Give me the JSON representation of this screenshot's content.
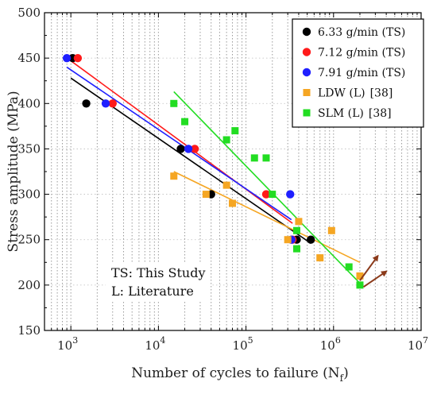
{
  "chart_data": {
    "type": "scatter",
    "title": "",
    "xlabel": "Number of cycles to failure (N",
    "xlabel_sub": "f",
    "xlabel_close": ")",
    "ylabel": "Stress amplitude (MPa)",
    "xscale": "log",
    "xlim": [
      500,
      10000000
    ],
    "ylim": [
      150,
      500
    ],
    "x_ticks": [
      {
        "value": 1000,
        "base": "10",
        "exp": "3"
      },
      {
        "value": 10000,
        "base": "10",
        "exp": "4"
      },
      {
        "value": 100000,
        "base": "10",
        "exp": "5"
      },
      {
        "value": 1000000,
        "base": "10",
        "exp": "6"
      },
      {
        "value": 10000000,
        "base": "10",
        "exp": "7"
      }
    ],
    "y_ticks": [
      "150",
      "200",
      "250",
      "300",
      "350",
      "400",
      "450",
      "500"
    ],
    "grid": true,
    "legend_position": "top-right",
    "series": [
      {
        "name": "6.33 g/min (TS)",
        "color": "#000000",
        "marker": "circle",
        "points": [
          [
            1050,
            450
          ],
          [
            1500,
            400
          ],
          [
            18000,
            350
          ],
          [
            40000,
            300
          ],
          [
            380000,
            250
          ],
          [
            550000,
            250
          ]
        ],
        "trend": [
          [
            1000,
            428
          ],
          [
            550000,
            246
          ]
        ]
      },
      {
        "name": "7.12 g/min (TS)",
        "color": "#ff1a1a",
        "marker": "circle",
        "points": [
          [
            1200,
            450
          ],
          [
            3000,
            400
          ],
          [
            26000,
            350
          ],
          [
            170000,
            300
          ],
          [
            340000,
            250
          ]
        ],
        "trend": [
          [
            1000,
            447
          ],
          [
            340000,
            268
          ]
        ]
      },
      {
        "name": "7.91 g/min (TS)",
        "color": "#1f1fff",
        "marker": "circle",
        "points": [
          [
            900,
            450
          ],
          [
            2500,
            400
          ],
          [
            22000,
            350
          ],
          [
            320000,
            300
          ],
          [
            330000,
            250
          ]
        ],
        "trend": [
          [
            900,
            440
          ],
          [
            330000,
            272
          ]
        ]
      },
      {
        "name": "LDW (L)",
        "ref": "[38]",
        "color": "#f5a623",
        "marker": "square",
        "points": [
          [
            15000,
            320
          ],
          [
            35000,
            300
          ],
          [
            60000,
            310
          ],
          [
            70000,
            290
          ],
          [
            300000,
            250
          ],
          [
            400000,
            270
          ],
          [
            950000,
            260
          ],
          [
            700000,
            230
          ],
          [
            2000000,
            210
          ]
        ],
        "trend": [
          [
            15000,
            325
          ],
          [
            2000000,
            225
          ]
        ]
      },
      {
        "name": "SLM (L)",
        "ref": "[38]",
        "color": "#22dd22",
        "marker": "square",
        "points": [
          [
            15000,
            400
          ],
          [
            20000,
            380
          ],
          [
            60000,
            360
          ],
          [
            75000,
            370
          ],
          [
            125000,
            340
          ],
          [
            170000,
            340
          ],
          [
            200000,
            300
          ],
          [
            380000,
            260
          ],
          [
            380000,
            240
          ],
          [
            1500000,
            220
          ],
          [
            2000000,
            200
          ]
        ],
        "trend": [
          [
            15000,
            413
          ],
          [
            2000000,
            202
          ]
        ]
      }
    ],
    "arrows": [
      {
        "from": [
          2000000,
          205
        ],
        "to": [
          3200000,
          232
        ]
      },
      {
        "from": [
          2200000,
          198
        ],
        "to": [
          4000000,
          215
        ]
      }
    ],
    "annotations": [
      "TS: This Study",
      "L: Literature"
    ]
  }
}
